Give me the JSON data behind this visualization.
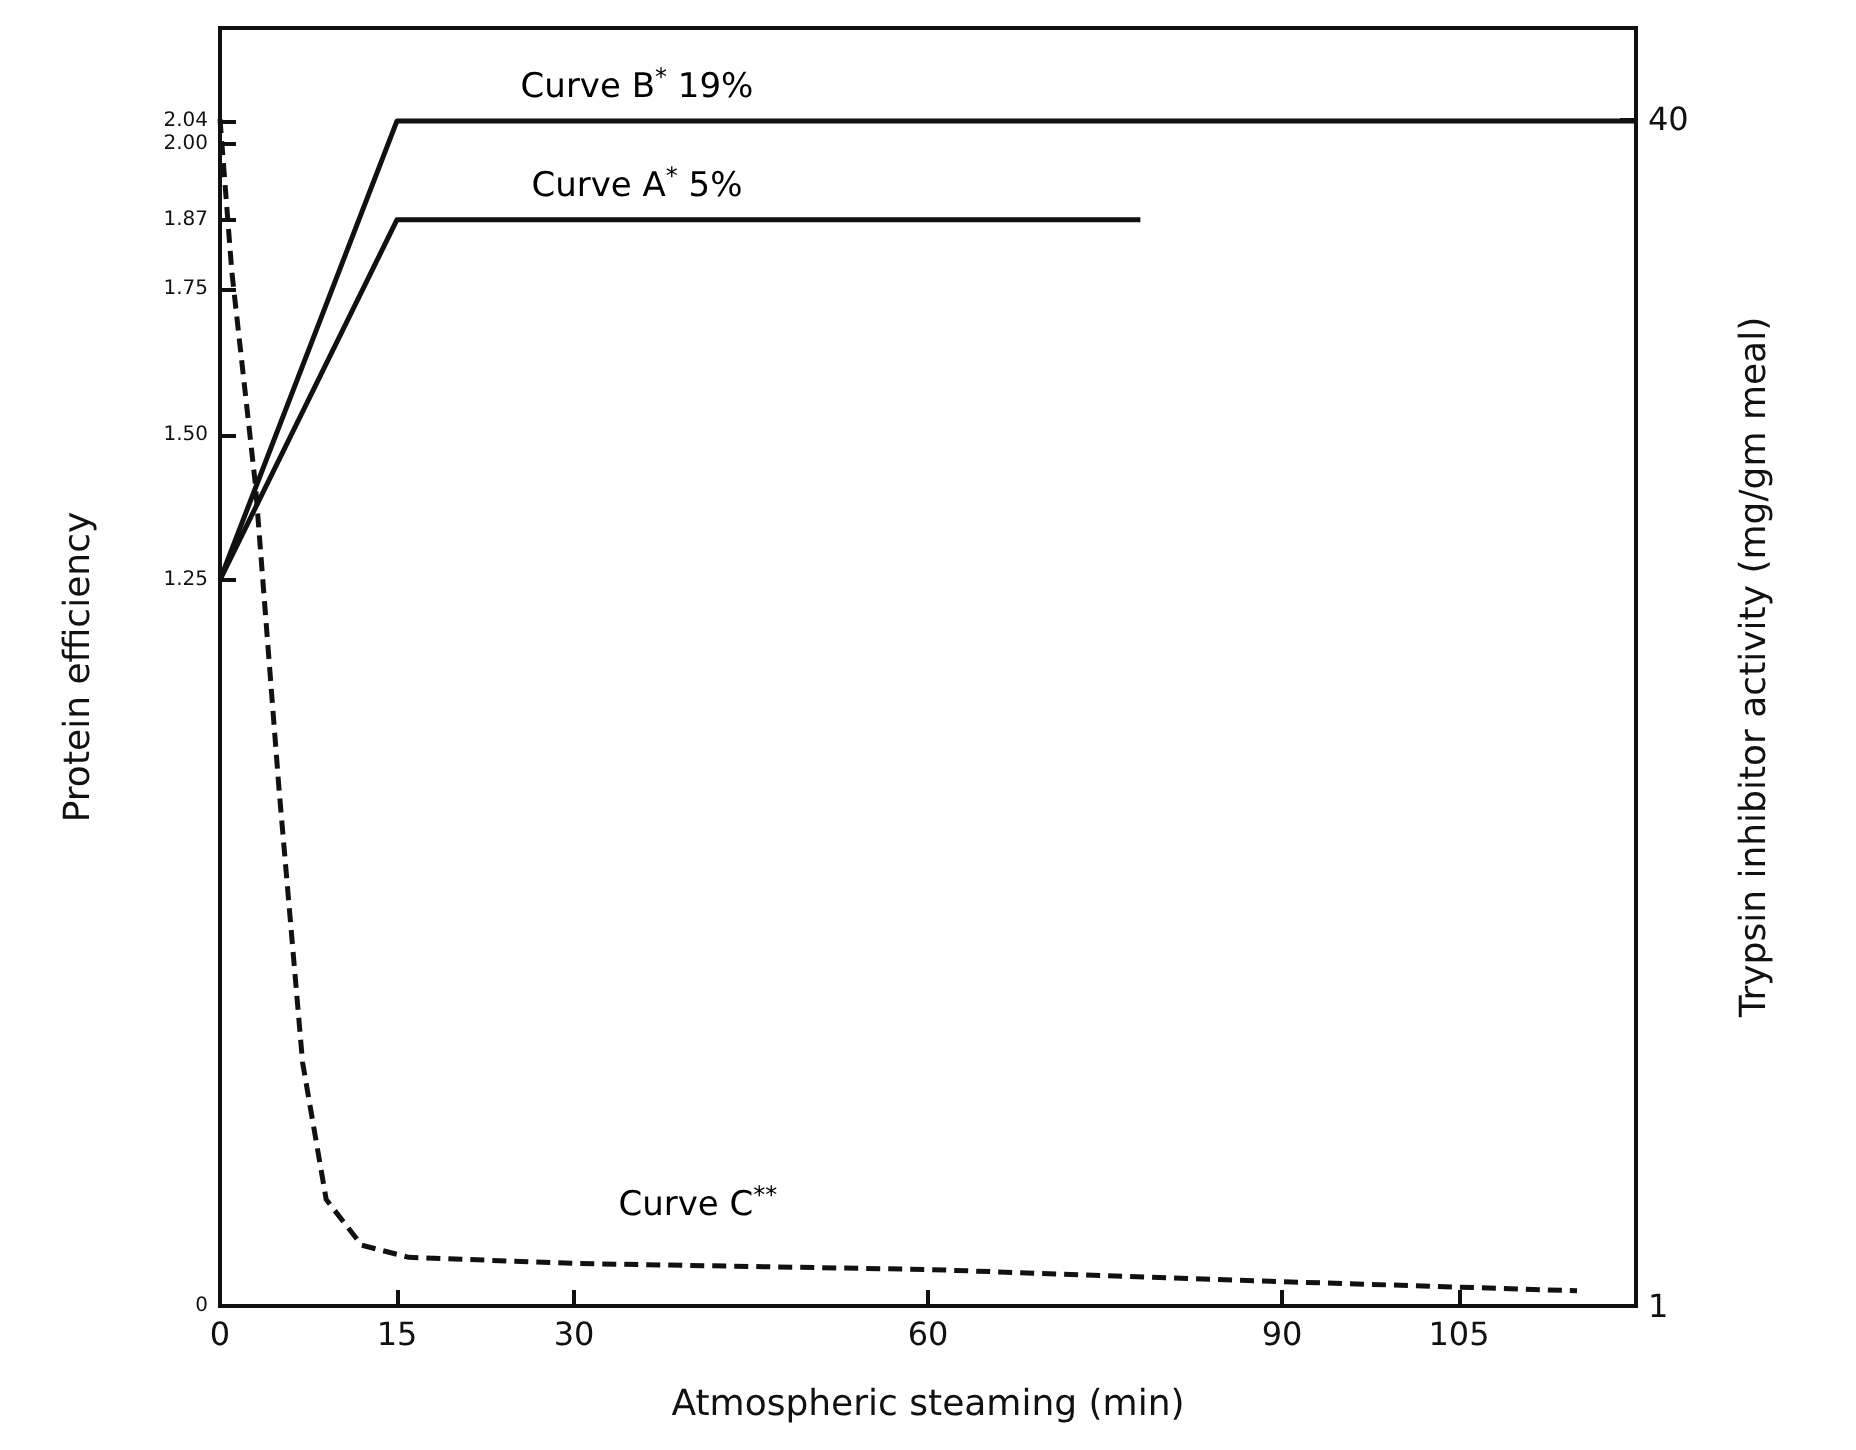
{
  "chart_data": {
    "type": "line",
    "xlabel": "Atmospheric steaming (min)",
    "ylabel": "Protein efficiency",
    "y2label": "Trypsin inhibitor activity (mg/gm meal)",
    "series": [
      {
        "name": "Curve B$^{*}$ 19%",
        "color": "#111111",
        "x": [
          0,
          15,
          120
        ],
        "values": [
          1.25,
          2.04,
          2.04
        ]
      },
      {
        "name": "Curve A$^{*}$ 5%",
        "color": "#111111",
        "x": [
          0,
          15,
          78
        ],
        "values": [
          1.25,
          1.87,
          1.87
        ]
      },
      {
        "name": "Curve C$^{**}$",
        "color": "#111111",
        "axis": "y2",
        "line_style": "dashed",
        "x": [
          0,
          1,
          3,
          5,
          7,
          9,
          12,
          16,
          30,
          60,
          90,
          115
        ],
        "values": [
          40,
          35,
          28,
          18,
          9,
          4.5,
          3,
          2.6,
          2.4,
          2.2,
          1.8,
          1.5
        ]
      }
    ],
    "xlim": [
      0,
      120
    ],
    "xticks": [
      0,
      15,
      30,
      60,
      90,
      105
    ],
    "ylim": [
      0,
      2.2
    ],
    "yticks": [
      {
        "value": 0,
        "label": "0"
      },
      {
        "value": 1.25,
        "label": "1.25"
      },
      {
        "value": 1.5,
        "label": "1.50"
      },
      {
        "value": 1.75,
        "label": "1.75"
      },
      {
        "value": 1.87,
        "label": "1.87"
      },
      {
        "value": 2.0,
        "label": "2.00"
      },
      {
        "value": 2.04,
        "label": "2.04"
      }
    ],
    "y2lim": [
      1,
      43
    ],
    "y2ticks": [
      1,
      40
    ],
    "grid": false,
    "marker": "none",
    "line_style": "solid"
  }
}
